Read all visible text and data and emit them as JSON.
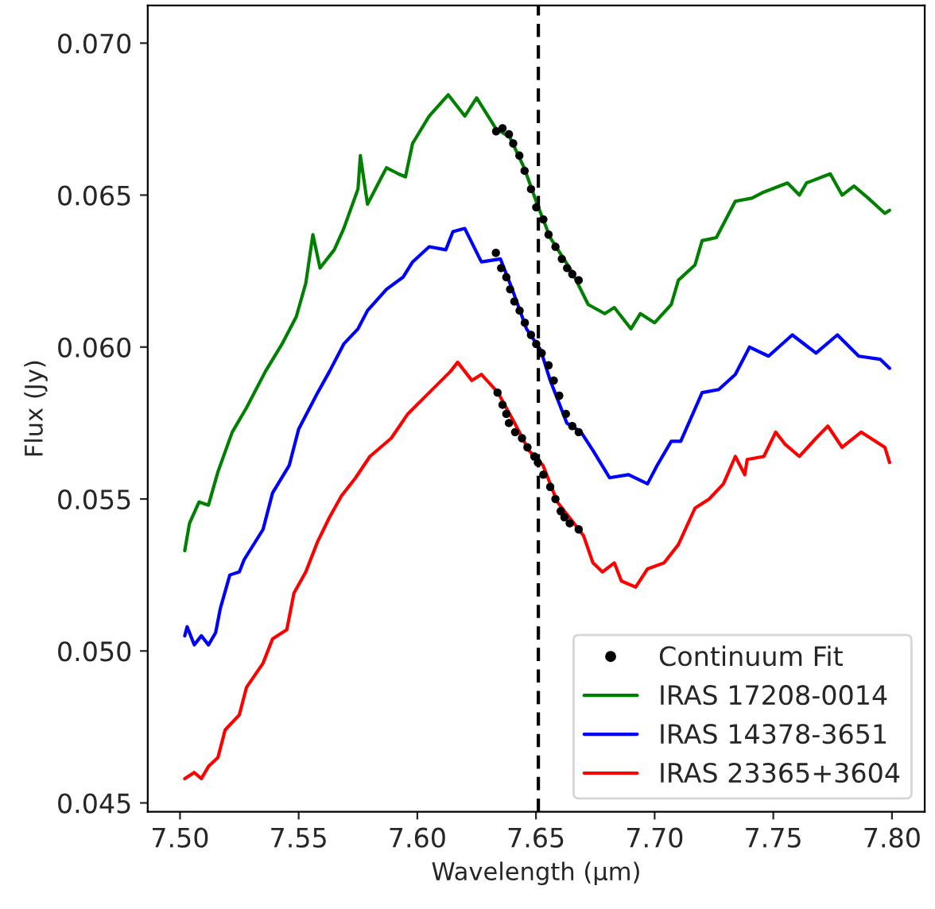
{
  "chart_data": {
    "type": "line",
    "xlabel": "Wavelength (μm)",
    "ylabel": "Flux (Jy)",
    "xlim": [
      7.4864,
      7.8138
    ],
    "ylim": [
      0.04471,
      0.07124
    ],
    "xticks": [
      {
        "value": 7.5,
        "label": "7.50"
      },
      {
        "value": 7.55,
        "label": "7.55"
      },
      {
        "value": 7.6,
        "label": "7.60"
      },
      {
        "value": 7.65,
        "label": "7.65"
      },
      {
        "value": 7.7,
        "label": "7.70"
      },
      {
        "value": 7.75,
        "label": "7.75"
      },
      {
        "value": 7.8,
        "label": "7.80"
      }
    ],
    "yticks": [
      {
        "value": 0.045,
        "label": "0.045"
      },
      {
        "value": 0.05,
        "label": "0.050"
      },
      {
        "value": 0.055,
        "label": "0.055"
      },
      {
        "value": 0.06,
        "label": "0.060"
      },
      {
        "value": 0.065,
        "label": "0.065"
      },
      {
        "value": 0.07,
        "label": "0.070"
      }
    ],
    "legend": "bottom right",
    "grid": false,
    "ref_lines": [
      {
        "axis": "x",
        "value": 7.651,
        "color": "#000000",
        "line_style": "dashed"
      }
    ],
    "series": [
      {
        "type": "scatter",
        "name": "Continuum Fit",
        "color": "#000000",
        "marker": "circle",
        "x": [
          7.6332,
          7.6359,
          7.6386,
          7.6404,
          7.643,
          7.6452,
          7.6479,
          7.6501,
          7.6531,
          7.6553,
          7.6582,
          7.6609,
          7.6631,
          7.6653,
          7.668,
          7.6331,
          7.6353,
          7.6375,
          7.6391,
          7.6409,
          7.6431,
          7.6453,
          7.6479,
          7.6501,
          7.6524,
          7.6553,
          7.6575,
          7.6598,
          7.6626,
          7.6653,
          7.668,
          7.6338,
          7.6359,
          7.6375,
          7.6386,
          7.6412,
          7.6441,
          7.6464,
          7.6493,
          7.6508,
          7.6531,
          7.656,
          7.6582,
          7.6604,
          7.662,
          7.6642,
          7.668
        ],
        "values": [
          0.0671,
          0.0672,
          0.067,
          0.0667,
          0.0663,
          0.0658,
          0.0652,
          0.0646,
          0.0642,
          0.0637,
          0.0633,
          0.0629,
          0.0626,
          0.0624,
          0.0622,
          0.0631,
          0.0626,
          0.0623,
          0.0619,
          0.0615,
          0.0612,
          0.0608,
          0.0604,
          0.0601,
          0.0598,
          0.0594,
          0.0589,
          0.0584,
          0.0578,
          0.0574,
          0.0572,
          0.0585,
          0.0581,
          0.0578,
          0.0575,
          0.0572,
          0.057,
          0.0567,
          0.0564,
          0.0562,
          0.0558,
          0.0554,
          0.055,
          0.0546,
          0.0544,
          0.0542,
          0.054
        ]
      },
      {
        "name": "IRAS 17208-0014",
        "color": "#008000",
        "line_style": "solid",
        "x": [
          7.502,
          7.504,
          7.508,
          7.512,
          7.516,
          7.522,
          7.528,
          7.536,
          7.543,
          7.549,
          7.553,
          7.556,
          7.559,
          7.565,
          7.569,
          7.575,
          7.576,
          7.579,
          7.585,
          7.587,
          7.592,
          7.595,
          7.598,
          7.605,
          7.613,
          7.62,
          7.625,
          7.633,
          7.639,
          7.645,
          7.651,
          7.656,
          7.665,
          7.672,
          7.679,
          7.683,
          7.69,
          7.694,
          7.7,
          7.707,
          7.71,
          7.717,
          7.72,
          7.726,
          7.734,
          7.741,
          7.746,
          7.756,
          7.761,
          7.764,
          7.774,
          7.779,
          7.784,
          7.79,
          7.797,
          7.799
        ],
        "values": [
          0.0533,
          0.0542,
          0.0549,
          0.0548,
          0.0559,
          0.0572,
          0.058,
          0.0592,
          0.0601,
          0.061,
          0.0621,
          0.0637,
          0.0626,
          0.0632,
          0.0639,
          0.0652,
          0.0663,
          0.0647,
          0.0656,
          0.0659,
          0.0657,
          0.0656,
          0.0667,
          0.0676,
          0.0683,
          0.0676,
          0.0682,
          0.0672,
          0.0669,
          0.0659,
          0.0646,
          0.0636,
          0.0625,
          0.0614,
          0.0611,
          0.0613,
          0.0606,
          0.0611,
          0.0608,
          0.0614,
          0.0622,
          0.0627,
          0.0635,
          0.0636,
          0.0648,
          0.0649,
          0.0651,
          0.0654,
          0.065,
          0.0654,
          0.0657,
          0.065,
          0.0653,
          0.0649,
          0.0644,
          0.0645
        ]
      },
      {
        "name": "IRAS 14378-3651",
        "color": "#0000ff",
        "line_style": "solid",
        "x": [
          7.502,
          7.503,
          7.506,
          7.509,
          7.512,
          7.515,
          7.517,
          7.521,
          7.525,
          7.527,
          7.535,
          7.539,
          7.546,
          7.55,
          7.558,
          7.563,
          7.569,
          7.575,
          7.579,
          7.587,
          7.594,
          7.598,
          7.605,
          7.612,
          7.615,
          7.62,
          7.627,
          7.635,
          7.64,
          7.646,
          7.652,
          7.656,
          7.663,
          7.669,
          7.674,
          7.681,
          7.689,
          7.697,
          7.701,
          7.707,
          7.711,
          7.72,
          7.727,
          7.734,
          7.74,
          7.748,
          7.758,
          7.768,
          7.777,
          7.786,
          7.795,
          7.799
        ],
        "values": [
          0.0505,
          0.0508,
          0.0502,
          0.0505,
          0.0502,
          0.0506,
          0.0514,
          0.0525,
          0.0526,
          0.053,
          0.054,
          0.0552,
          0.0561,
          0.0573,
          0.0585,
          0.0592,
          0.0601,
          0.0606,
          0.0612,
          0.0619,
          0.0623,
          0.0628,
          0.0633,
          0.0632,
          0.0638,
          0.0639,
          0.0628,
          0.0629,
          0.0619,
          0.0606,
          0.0599,
          0.0589,
          0.0575,
          0.0572,
          0.0566,
          0.0557,
          0.0558,
          0.0555,
          0.0561,
          0.0569,
          0.0569,
          0.0585,
          0.0586,
          0.0591,
          0.06,
          0.0597,
          0.0604,
          0.0598,
          0.0604,
          0.0597,
          0.0596,
          0.0593
        ]
      },
      {
        "name": "IRAS 23365+3604",
        "color": "#ff0000",
        "line_style": "solid",
        "x": [
          7.502,
          7.506,
          7.509,
          7.512,
          7.516,
          7.519,
          7.525,
          7.528,
          7.535,
          7.539,
          7.545,
          7.548,
          7.553,
          7.558,
          7.563,
          7.568,
          7.574,
          7.58,
          7.589,
          7.596,
          7.605,
          7.614,
          7.617,
          7.623,
          7.627,
          7.634,
          7.641,
          7.647,
          7.653,
          7.659,
          7.665,
          7.67,
          7.674,
          7.678,
          7.683,
          7.686,
          7.692,
          7.697,
          7.704,
          7.71,
          7.717,
          7.723,
          7.729,
          7.734,
          7.738,
          7.739,
          7.746,
          7.751,
          7.755,
          7.761,
          7.768,
          7.773,
          7.779,
          7.787,
          7.793,
          7.797,
          7.799
        ],
        "values": [
          0.0458,
          0.046,
          0.0458,
          0.0462,
          0.0465,
          0.0474,
          0.0479,
          0.0488,
          0.0496,
          0.0504,
          0.0507,
          0.0519,
          0.0526,
          0.0536,
          0.0544,
          0.0551,
          0.0557,
          0.0564,
          0.057,
          0.0578,
          0.0585,
          0.0592,
          0.0595,
          0.0589,
          0.0591,
          0.0585,
          0.0575,
          0.0566,
          0.0561,
          0.0549,
          0.0543,
          0.0538,
          0.0529,
          0.0526,
          0.0529,
          0.0523,
          0.0521,
          0.0527,
          0.0529,
          0.0535,
          0.0547,
          0.055,
          0.0555,
          0.0564,
          0.0558,
          0.0563,
          0.0564,
          0.0572,
          0.0568,
          0.0564,
          0.057,
          0.0574,
          0.0567,
          0.0572,
          0.0569,
          0.0567,
          0.0562
        ]
      }
    ]
  }
}
